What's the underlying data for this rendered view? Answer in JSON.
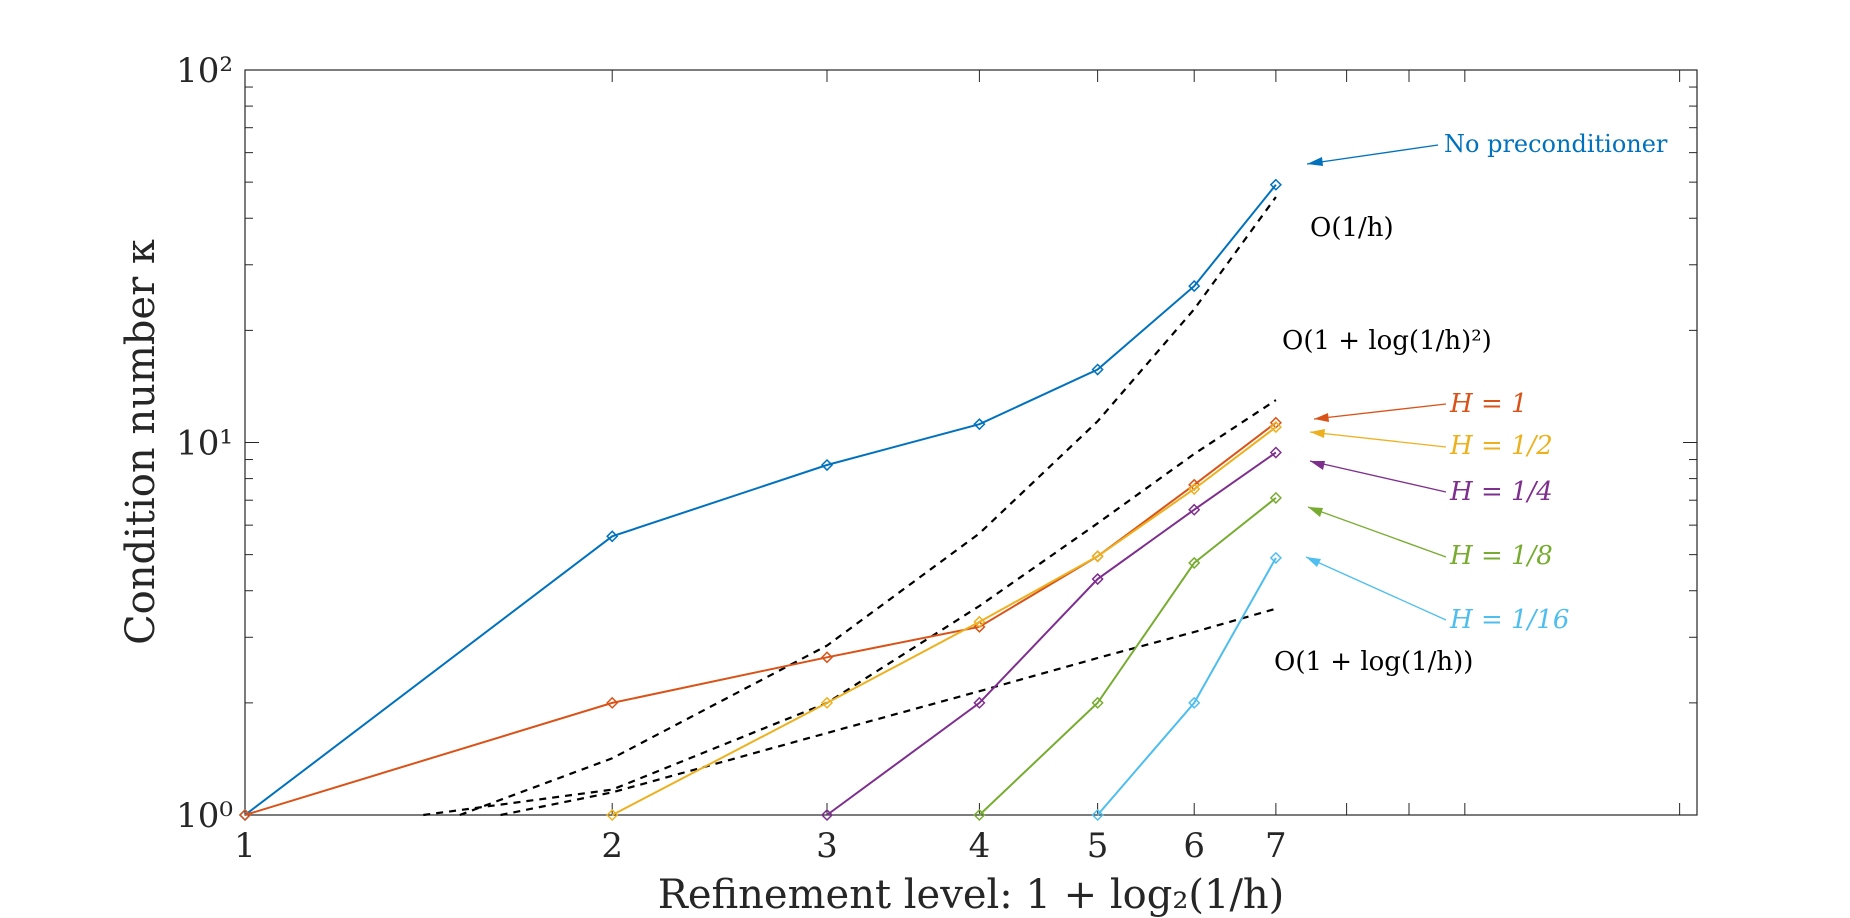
{
  "chart_data": {
    "type": "line",
    "xscale": "log",
    "yscale": "log",
    "xlabel": "Refinement level: 1 + log₂(1/h)",
    "ylabel": "Condition number κ",
    "xlim": [
      1,
      15.5
    ],
    "ylim": [
      1,
      100
    ],
    "xticks": [
      1,
      2,
      3,
      4,
      5,
      6,
      7
    ],
    "xtick_labels": [
      "1",
      "2",
      "3",
      "4",
      "5",
      "6",
      "7"
    ],
    "yticks": [
      1,
      10,
      100
    ],
    "ytick_labels": [
      "10⁰",
      "10¹",
      "10²"
    ],
    "grid": false,
    "series": [
      {
        "name": "No preconditioner",
        "color": "#0072BD",
        "x": [
          1,
          2,
          3,
          4,
          5,
          6,
          7
        ],
        "y": [
          1.0,
          5.6,
          8.7,
          11.2,
          15.7,
          26.3,
          49.2
        ]
      },
      {
        "name": "H = 1",
        "color": "#D95319",
        "x": [
          1,
          2,
          3,
          4,
          5,
          6,
          7
        ],
        "y": [
          1.0,
          2.0,
          2.65,
          3.2,
          4.95,
          7.7,
          11.3
        ]
      },
      {
        "name": "H = 1/2",
        "color": "#EDB120",
        "x": [
          2,
          3,
          4,
          5,
          6,
          7
        ],
        "y": [
          1.0,
          2.0,
          3.3,
          4.95,
          7.5,
          11.0
        ]
      },
      {
        "name": "H = 1/4",
        "color": "#7E2F8E",
        "x": [
          3,
          4,
          5,
          6,
          7
        ],
        "y": [
          1.0,
          2.0,
          4.3,
          6.6,
          9.4
        ]
      },
      {
        "name": "H = 1/8",
        "color": "#77AC30",
        "x": [
          4,
          5,
          6,
          7
        ],
        "y": [
          1.0,
          2.0,
          4.75,
          7.1
        ]
      },
      {
        "name": "H = 1/16",
        "color": "#4DBEEE",
        "x": [
          5,
          6,
          7
        ],
        "y": [
          1.0,
          2.0,
          4.9
        ]
      }
    ],
    "reference_lines": [
      {
        "name": "O(1/h)",
        "style": "dashed",
        "color": "#000000",
        "x": [
          1.5,
          2,
          3,
          4,
          5,
          6,
          7
        ],
        "y": [
          1.0,
          1.42,
          2.85,
          5.7,
          11.4,
          22.8,
          45.6
        ]
      },
      {
        "name": "O(1 + log(1/h)^2)",
        "style": "dashed",
        "color": "#000000",
        "x": [
          1.4,
          2,
          3,
          4,
          5,
          6,
          7
        ],
        "y": [
          1.0,
          1.17,
          2.0,
          3.64,
          6.07,
          9.32,
          13.0
        ]
      },
      {
        "name": "O(1 + log(1/h))",
        "style": "dashed",
        "color": "#000000",
        "x": [
          1.62,
          2,
          3,
          4,
          5,
          6,
          7
        ],
        "y": [
          1.0,
          1.15,
          1.66,
          2.15,
          2.64,
          3.1,
          3.58
        ]
      }
    ],
    "annotations": [
      {
        "text": "No preconditioner",
        "color": "#0072BD",
        "x": 11.2,
        "y": 60
      },
      {
        "text": "O(1/h)",
        "color": "#000000",
        "x": 7.35,
        "y": 39
      },
      {
        "text": "O(1 + log(1/h)²)",
        "color": "#000000",
        "x": 7.0,
        "y": 19
      },
      {
        "text": "H = 1",
        "color": "#D95319",
        "x": 10.0,
        "y": 11.0
      },
      {
        "text": "H = 1/2",
        "color": "#EDB120",
        "x": 10.0,
        "y": 8.5
      },
      {
        "text": "H = 1/4",
        "color": "#7E2F8E",
        "x": 10.0,
        "y": 6.4
      },
      {
        "text": "H = 1/8",
        "color": "#77AC30",
        "x": 10.0,
        "y": 4.3
      },
      {
        "text": "H = 1/16",
        "color": "#4DBEEE",
        "x": 10.0,
        "y": 2.9
      },
      {
        "text": "O(1 + log(1/h))",
        "color": "#000000",
        "x": 7.0,
        "y": 2.55
      }
    ]
  }
}
